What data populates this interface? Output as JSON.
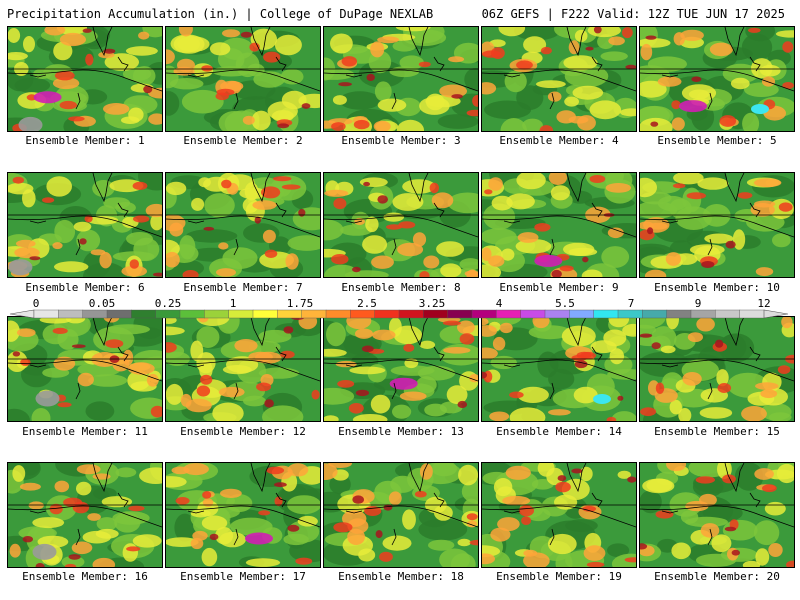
{
  "header": {
    "left": "Precipitation Accumulation (in.) | College of DuPage NEXLAB",
    "right": "06Z GEFS | F222 Valid: 12Z TUE JUN 17 2025"
  },
  "members": [
    "Ensemble Member: 1",
    "Ensemble Member: 2",
    "Ensemble Member: 3",
    "Ensemble Member: 4",
    "Ensemble Member: 5",
    "Ensemble Member: 6",
    "Ensemble Member: 7",
    "Ensemble Member: 8",
    "Ensemble Member: 9",
    "Ensemble Member: 10",
    "Ensemble Member: 11",
    "Ensemble Member: 12",
    "Ensemble Member: 13",
    "Ensemble Member: 14",
    "Ensemble Member: 15",
    "Ensemble Member: 16",
    "Ensemble Member: 17",
    "Ensemble Member: 18",
    "Ensemble Member: 19",
    "Ensemble Member: 20"
  ],
  "colorbar": {
    "labels": [
      "0",
      "0.05",
      "0.25",
      "1",
      "1.75",
      "2.5",
      "3.25",
      "4",
      "5.5",
      "7",
      "9",
      "12"
    ],
    "colors": [
      "#e6e6e6",
      "#bdbdbd",
      "#969696",
      "#6e6e6e",
      "#2f7f2f",
      "#3a9a3a",
      "#5cbf3a",
      "#9bd23a",
      "#d7ec3a",
      "#ffff3a",
      "#ffd23a",
      "#ffb43a",
      "#ff8c2a",
      "#ff5a1e",
      "#f0321e",
      "#d2141e",
      "#a0001e",
      "#870050",
      "#b4007d",
      "#e61eb4",
      "#c84be6",
      "#aa82f0",
      "#82aaff",
      "#32e6f0",
      "#3cc8c8",
      "#46aaaa",
      "#828282",
      "#a5a5a5",
      "#c8c8c8",
      "#dcdcdc"
    ]
  },
  "palette": {
    "base": "#3b9a3b",
    "dark": "#2c7d2c",
    "light": "#7cc63c",
    "yellow": "#e8ec3a",
    "orange": "#ffa53a",
    "red": "#f03c1e",
    "darkred": "#a8141e",
    "magenta": "#d21eb4",
    "cyan": "#3ce6f0",
    "grey": "#9a9a9a"
  }
}
